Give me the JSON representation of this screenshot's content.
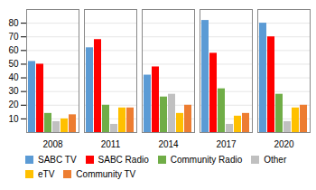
{
  "chart_data": {
    "type": "bar",
    "categories": [
      "2008",
      "2011",
      "2014",
      "2017",
      "2020"
    ],
    "series": [
      {
        "name": "SABC TV",
        "color": "#5B9BD5",
        "values": [
          52,
          62,
          42,
          82,
          80
        ]
      },
      {
        "name": "SABC Radio",
        "color": "#FF0000",
        "values": [
          50,
          68,
          48,
          58,
          70
        ]
      },
      {
        "name": "Community Radio",
        "color": "#70AD47",
        "values": [
          14,
          20,
          26,
          32,
          28
        ]
      },
      {
        "name": "Other",
        "color": "#C0C0C0",
        "values": [
          8,
          6,
          28,
          6,
          8
        ]
      },
      {
        "name": "eTV",
        "color": "#FFC000",
        "values": [
          10,
          18,
          14,
          12,
          18
        ]
      },
      {
        "name": "Community TV",
        "color": "#ED7D31",
        "values": [
          13,
          18,
          20,
          14,
          20
        ]
      }
    ],
    "ylim": [
      0,
      90
    ],
    "yticks": [
      10,
      20,
      30,
      40,
      50,
      60,
      70,
      80
    ],
    "grid": true,
    "legend": "bottom"
  }
}
